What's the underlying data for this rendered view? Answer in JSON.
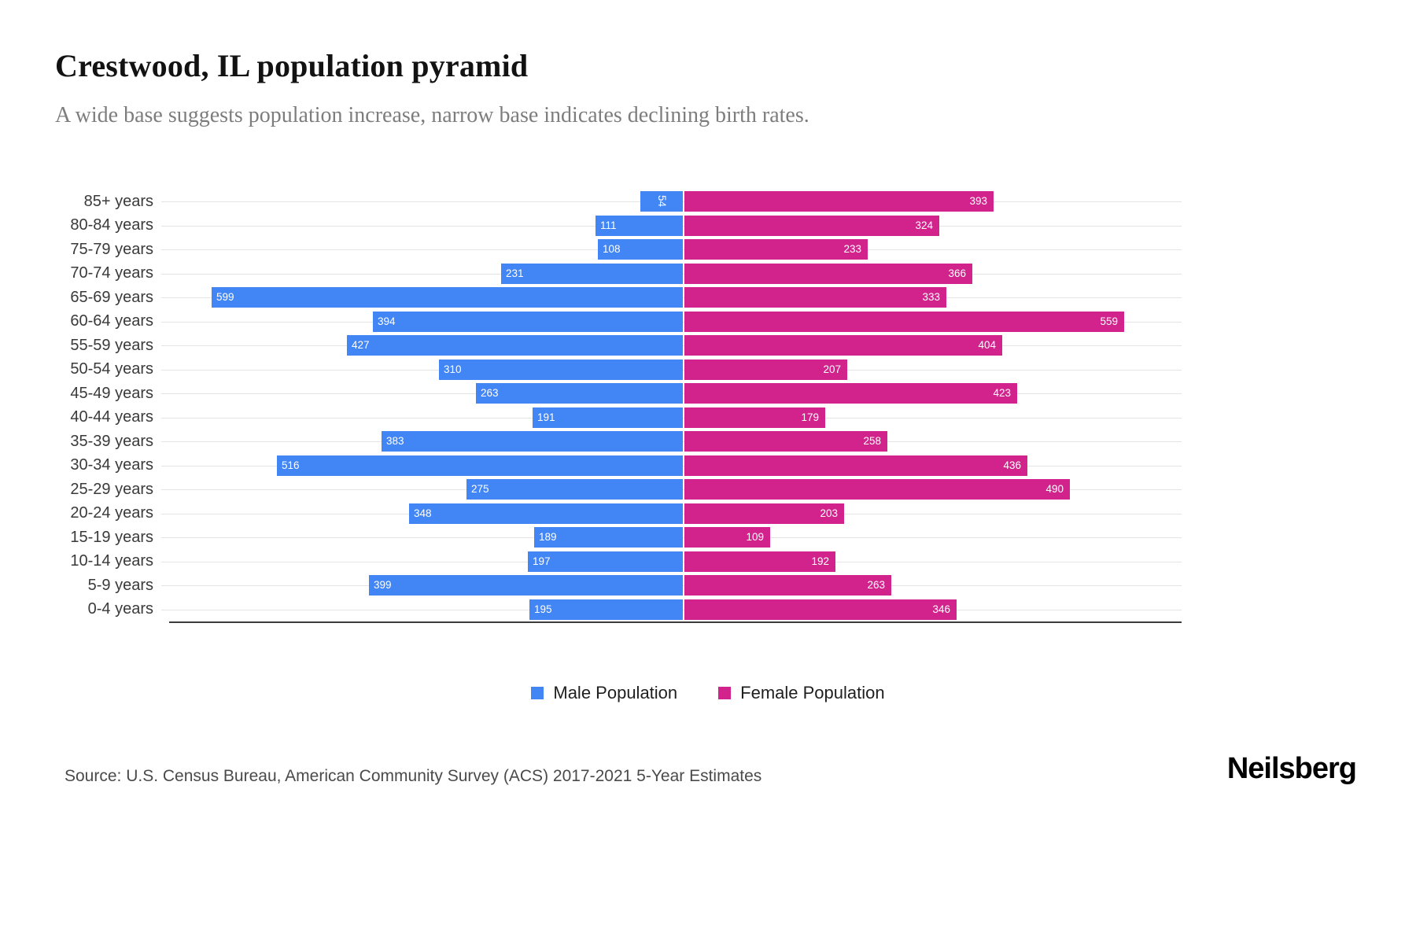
{
  "header": {
    "title": "Crestwood, IL population pyramid",
    "subtitle": "A wide base suggests population increase, narrow base indicates declining birth rates."
  },
  "chart_data": {
    "type": "bar",
    "variant": "population-pyramid",
    "title": "Crestwood, IL population pyramid",
    "categories": [
      "85+ years",
      "80-84 years",
      "75-79 years",
      "70-74 years",
      "65-69 years",
      "60-64 years",
      "55-59 years",
      "50-54 years",
      "45-49 years",
      "40-44 years",
      "35-39 years",
      "30-34 years",
      "25-29 years",
      "20-24 years",
      "15-19 years",
      "10-14 years",
      "5-9 years",
      "0-4 years"
    ],
    "series": [
      {
        "name": "Male Population",
        "color": "#4285F4",
        "direction": "left",
        "values": [
          54,
          111,
          108,
          231,
          599,
          394,
          427,
          310,
          263,
          191,
          383,
          516,
          275,
          348,
          189,
          197,
          399,
          195
        ]
      },
      {
        "name": "Female Population",
        "color": "#D2228C",
        "direction": "right",
        "values": [
          393,
          324,
          233,
          366,
          333,
          559,
          404,
          207,
          423,
          179,
          258,
          436,
          490,
          203,
          109,
          192,
          263,
          346
        ]
      }
    ],
    "value_labels": "inside-bar-end",
    "grid": "horizontal-light",
    "legend_position": "bottom-center"
  },
  "legend": {
    "male_label": "Male Population",
    "female_label": "Female Population"
  },
  "footer": {
    "source": "Source: U.S. Census Bureau, American Community Survey (ACS) 2017-2021 5-Year Estimates",
    "brand": "Neilsberg"
  },
  "colors": {
    "male": "#4285F4",
    "female": "#D2228C"
  }
}
